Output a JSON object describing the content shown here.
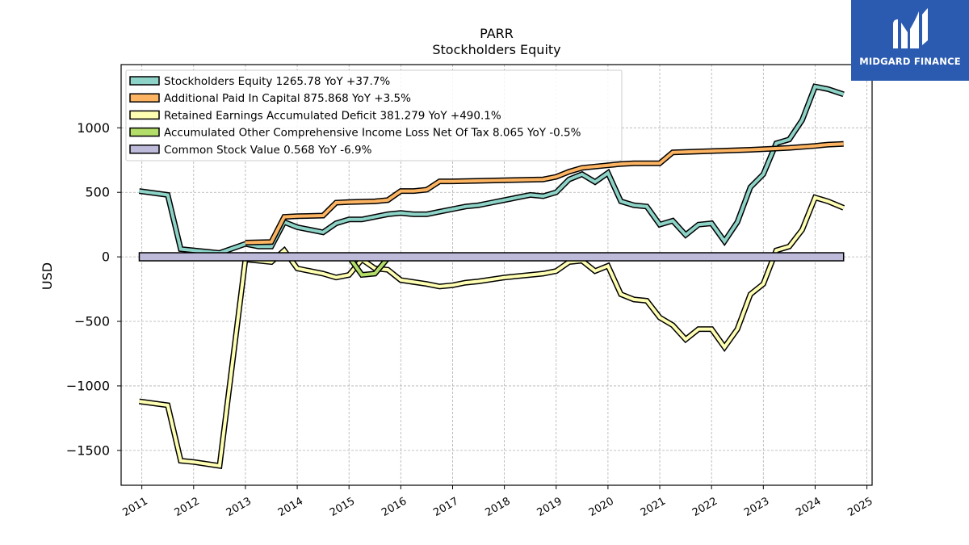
{
  "brand": {
    "name": "MIDGARD FINANCE",
    "logo_icon": "midgard-logo-icon",
    "color": "#2b5bb0"
  },
  "chart_data": {
    "type": "line",
    "title": "PARR",
    "subtitle": "Stockholders  Equity",
    "ylabel": "USD",
    "xlabel": "",
    "xlim": [
      2010.6,
      2025.1
    ],
    "ylim": [
      -1770,
      1490
    ],
    "yticks": [
      -1500,
      -1000,
      -500,
      0,
      500,
      1000
    ],
    "ytick_labels": [
      "−1500",
      "−1000",
      "−500",
      "0",
      "500",
      "1000"
    ],
    "xticks": [
      2011,
      2012,
      2013,
      2014,
      2015,
      2016,
      2017,
      2018,
      2019,
      2020,
      2021,
      2022,
      2023,
      2024,
      2025
    ],
    "xtick_labels": [
      "2011",
      "2012",
      "2013",
      "2014",
      "2015",
      "2016",
      "2017",
      "2018",
      "2019",
      "2020",
      "2021",
      "2022",
      "2023",
      "2024",
      "2025"
    ],
    "grid": true,
    "legend_position": "top-left",
    "series": [
      {
        "name": "Stockholders Equity",
        "legend": "Stockholders Equity  1265.78 YoY +37.7%",
        "color": "#8dd3c7",
        "x": [
          2010.95,
          2011.5,
          2011.75,
          2012.0,
          2012.5,
          2013.0,
          2013.25,
          2013.5,
          2013.75,
          2014.0,
          2014.25,
          2014.5,
          2014.75,
          2015.0,
          2015.25,
          2015.5,
          2015.75,
          2016.0,
          2016.25,
          2016.5,
          2016.75,
          2017.0,
          2017.25,
          2017.5,
          2017.75,
          2018.0,
          2018.25,
          2018.5,
          2018.75,
          2019.0,
          2019.25,
          2019.5,
          2019.75,
          2020.0,
          2020.25,
          2020.5,
          2020.75,
          2021.0,
          2021.25,
          2021.5,
          2021.75,
          2022.0,
          2022.25,
          2022.5,
          2022.75,
          2023.0,
          2023.25,
          2023.5,
          2023.75,
          2024.0,
          2024.25,
          2024.55
        ],
        "values": [
          510,
          480,
          60,
          50,
          30,
          100,
          80,
          80,
          270,
          230,
          210,
          190,
          260,
          290,
          290,
          310,
          330,
          340,
          330,
          330,
          350,
          370,
          390,
          400,
          420,
          440,
          460,
          480,
          470,
          500,
          600,
          640,
          580,
          650,
          430,
          400,
          390,
          250,
          280,
          170,
          250,
          260,
          120,
          270,
          540,
          640,
          880,
          910,
          1060,
          1320,
          1300,
          1260
        ]
      },
      {
        "name": "Additional Paid In Capital",
        "legend": "Additional Paid In Capital  875.868 YoY +3.5%",
        "color": "#fdb462",
        "x": [
          2013.0,
          2013.5,
          2013.75,
          2014.0,
          2014.5,
          2014.75,
          2015.0,
          2015.5,
          2015.75,
          2016.0,
          2016.25,
          2016.5,
          2016.75,
          2017.0,
          2018.75,
          2019.0,
          2019.25,
          2019.5,
          2019.75,
          2020.0,
          2020.25,
          2020.5,
          2021.0,
          2021.25,
          2022.0,
          2022.75,
          2023.0,
          2023.5,
          2024.0,
          2024.25,
          2024.55
        ],
        "values": [
          110,
          115,
          310,
          315,
          320,
          420,
          425,
          430,
          440,
          510,
          510,
          520,
          585,
          585,
          600,
          620,
          660,
          690,
          700,
          710,
          720,
          725,
          725,
          810,
          820,
          830,
          835,
          845,
          860,
          870,
          875
        ]
      },
      {
        "name": "Retained Earnings Accumulated Deficit",
        "legend": "Retained Earnings Accumulated Deficit  381.279 YoY +490.1%",
        "color": "#ffffb3",
        "x": [
          2010.95,
          2011.5,
          2011.75,
          2012.0,
          2012.5,
          2013.0,
          2013.5,
          2013.75,
          2014.0,
          2014.5,
          2014.75,
          2015.0,
          2015.25,
          2015.5,
          2015.75,
          2016.0,
          2016.5,
          2016.75,
          2017.0,
          2017.25,
          2017.5,
          2018.0,
          2018.5,
          2018.75,
          2019.0,
          2019.25,
          2019.5,
          2019.75,
          2020.0,
          2020.25,
          2020.5,
          2020.75,
          2021.0,
          2021.25,
          2021.5,
          2021.75,
          2022.0,
          2022.25,
          2022.5,
          2022.75,
          2023.0,
          2023.25,
          2023.5,
          2023.75,
          2024.0,
          2024.25,
          2024.55
        ],
        "values": [
          -1120,
          -1150,
          -1580,
          -1590,
          -1620,
          -20,
          -40,
          50,
          -90,
          -130,
          -160,
          -140,
          -20,
          -90,
          -100,
          -180,
          -210,
          -230,
          -220,
          -200,
          -190,
          -160,
          -140,
          -130,
          -110,
          -40,
          -30,
          -110,
          -70,
          -290,
          -330,
          -340,
          -470,
          -530,
          -640,
          -560,
          -560,
          -700,
          -560,
          -290,
          -210,
          50,
          80,
          210,
          460,
          430,
          380
        ]
      },
      {
        "name": "Accumulated Other Comprehensive Income Loss Net Of Tax",
        "legend": "Accumulated Other Comprehensive Income Loss Net Of Tax  8.065 YoY -0.5%",
        "color": "#b3de69",
        "x": [
          2014.75,
          2015.0,
          2015.25,
          2015.5,
          2015.75,
          2016.0,
          2024.55
        ],
        "values": [
          0,
          0,
          -140,
          -130,
          -10,
          0,
          8
        ]
      },
      {
        "name": "Common Stock Value",
        "legend": "Common Stock Value  0.568 YoY -6.9%",
        "color": "#bebada",
        "x": [
          2010.95,
          2024.55
        ],
        "values": [
          0.6,
          0.6
        ]
      }
    ]
  }
}
